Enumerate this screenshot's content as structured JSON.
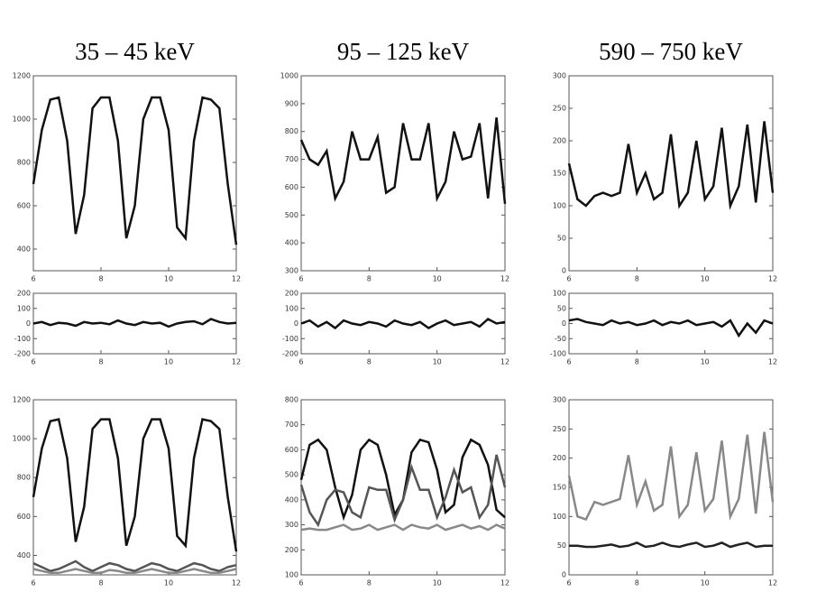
{
  "chart_data": [
    {
      "type": "line",
      "title": "35 – 45 keV",
      "x": [
        6,
        6.25,
        6.5,
        6.75,
        7,
        7.25,
        7.5,
        7.75,
        8,
        8.25,
        8.5,
        8.75,
        9,
        9.25,
        9.5,
        9.75,
        10,
        10.25,
        10.5,
        10.75,
        11,
        11.25,
        11.5,
        11.75,
        12
      ],
      "series": [
        {
          "color": "#111111",
          "values": [
            700,
            950,
            1090,
            1100,
            900,
            470,
            650,
            1050,
            1100,
            1100,
            900,
            450,
            600,
            1000,
            1100,
            1100,
            950,
            500,
            450,
            900,
            1100,
            1090,
            1050,
            700,
            420
          ]
        }
      ],
      "xlim": [
        6,
        12
      ],
      "xticks": [
        6,
        8,
        10,
        12
      ],
      "ylim": [
        300,
        1200
      ],
      "yticks": [
        400,
        600,
        800,
        1000,
        1200
      ]
    },
    {
      "type": "line",
      "title": "95 – 125 keV",
      "x": [
        6,
        6.25,
        6.5,
        6.75,
        7,
        7.25,
        7.5,
        7.75,
        8,
        8.25,
        8.5,
        8.75,
        9,
        9.25,
        9.5,
        9.75,
        10,
        10.25,
        10.5,
        10.75,
        11,
        11.25,
        11.5,
        11.75,
        12
      ],
      "series": [
        {
          "color": "#111111",
          "values": [
            770,
            700,
            680,
            730,
            560,
            620,
            800,
            700,
            700,
            780,
            580,
            600,
            830,
            700,
            700,
            830,
            560,
            620,
            800,
            700,
            710,
            830,
            560,
            850,
            540
          ]
        }
      ],
      "xlim": [
        6,
        12
      ],
      "xticks": [
        6,
        8,
        10,
        12
      ],
      "ylim": [
        300,
        1000
      ],
      "yticks": [
        300,
        400,
        500,
        600,
        700,
        800,
        900,
        1000
      ]
    },
    {
      "type": "line",
      "title": "590 – 750 keV",
      "x": [
        6,
        6.25,
        6.5,
        6.75,
        7,
        7.25,
        7.5,
        7.75,
        8,
        8.25,
        8.5,
        8.75,
        9,
        9.25,
        9.5,
        9.75,
        10,
        10.25,
        10.5,
        10.75,
        11,
        11.25,
        11.5,
        11.75,
        12
      ],
      "series": [
        {
          "color": "#111111",
          "values": [
            165,
            110,
            100,
            115,
            120,
            115,
            120,
            195,
            120,
            150,
            110,
            120,
            210,
            100,
            120,
            200,
            110,
            130,
            220,
            100,
            130,
            225,
            105,
            230,
            120
          ]
        }
      ],
      "xlim": [
        6,
        12
      ],
      "xticks": [
        6,
        8,
        10,
        12
      ],
      "ylim": [
        0,
        300
      ],
      "yticks": [
        0,
        50,
        100,
        150,
        200,
        250,
        300
      ]
    },
    {
      "type": "line",
      "x": [
        6,
        6.25,
        6.5,
        6.75,
        7,
        7.25,
        7.5,
        7.75,
        8,
        8.25,
        8.5,
        8.75,
        9,
        9.25,
        9.5,
        9.75,
        10,
        10.25,
        10.5,
        10.75,
        11,
        11.25,
        11.5,
        11.75,
        12
      ],
      "series": [
        {
          "color": "#111111",
          "values": [
            0,
            10,
            -10,
            5,
            0,
            -15,
            10,
            0,
            5,
            -5,
            20,
            0,
            -10,
            10,
            0,
            5,
            -20,
            0,
            10,
            15,
            -5,
            30,
            10,
            0,
            5
          ]
        }
      ],
      "xlim": [
        6,
        12
      ],
      "xticks": [
        6,
        8,
        10,
        12
      ],
      "ylim": [
        -200,
        200
      ],
      "yticks": [
        -200,
        -100,
        0,
        100,
        200
      ]
    },
    {
      "type": "line",
      "x": [
        6,
        6.25,
        6.5,
        6.75,
        7,
        7.25,
        7.5,
        7.75,
        8,
        8.25,
        8.5,
        8.75,
        9,
        9.25,
        9.5,
        9.75,
        10,
        10.25,
        10.5,
        10.75,
        11,
        11.25,
        11.5,
        11.75,
        12
      ],
      "series": [
        {
          "color": "#111111",
          "values": [
            0,
            20,
            -20,
            10,
            -30,
            20,
            0,
            -10,
            10,
            0,
            -20,
            20,
            0,
            -10,
            10,
            -30,
            0,
            20,
            -10,
            0,
            10,
            -20,
            30,
            0,
            10
          ]
        }
      ],
      "xlim": [
        6,
        12
      ],
      "xticks": [
        6,
        8,
        10,
        12
      ],
      "ylim": [
        -200,
        200
      ],
      "yticks": [
        -200,
        -100,
        0,
        100,
        200
      ]
    },
    {
      "type": "line",
      "x": [
        6,
        6.25,
        6.5,
        6.75,
        7,
        7.25,
        7.5,
        7.75,
        8,
        8.25,
        8.5,
        8.75,
        9,
        9.25,
        9.5,
        9.75,
        10,
        10.25,
        10.5,
        10.75,
        11,
        11.25,
        11.5,
        11.75,
        12
      ],
      "series": [
        {
          "color": "#111111",
          "values": [
            10,
            15,
            5,
            0,
            -5,
            10,
            0,
            5,
            -5,
            0,
            10,
            -5,
            5,
            0,
            10,
            -5,
            0,
            5,
            -10,
            10,
            -40,
            0,
            -30,
            10,
            0
          ]
        }
      ],
      "xlim": [
        6,
        12
      ],
      "xticks": [
        6,
        8,
        10,
        12
      ],
      "ylim": [
        -100,
        100
      ],
      "yticks": [
        -100,
        -50,
        0,
        50,
        100
      ]
    },
    {
      "type": "line",
      "x": [
        6,
        6.25,
        6.5,
        6.75,
        7,
        7.25,
        7.5,
        7.75,
        8,
        8.25,
        8.5,
        8.75,
        9,
        9.25,
        9.5,
        9.75,
        10,
        10.25,
        10.5,
        10.75,
        11,
        11.25,
        11.5,
        11.75,
        12
      ],
      "series": [
        {
          "color": "#111111",
          "values": [
            700,
            950,
            1090,
            1100,
            900,
            470,
            650,
            1050,
            1100,
            1100,
            900,
            450,
            600,
            1000,
            1100,
            1100,
            950,
            500,
            450,
            900,
            1100,
            1090,
            1050,
            700,
            420
          ]
        },
        {
          "color": "#555555",
          "values": [
            360,
            340,
            320,
            330,
            350,
            370,
            340,
            320,
            340,
            360,
            350,
            330,
            320,
            340,
            360,
            350,
            330,
            320,
            340,
            360,
            350,
            330,
            320,
            340,
            350
          ]
        },
        {
          "color": "#888888",
          "values": [
            330,
            320,
            310,
            310,
            320,
            330,
            320,
            310,
            310,
            325,
            320,
            310,
            310,
            320,
            330,
            320,
            310,
            310,
            320,
            330,
            320,
            310,
            310,
            320,
            330
          ]
        }
      ],
      "xlim": [
        6,
        12
      ],
      "xticks": [
        6,
        8,
        10,
        12
      ],
      "ylim": [
        300,
        1200
      ],
      "yticks": [
        400,
        600,
        800,
        1000,
        1200
      ]
    },
    {
      "type": "line",
      "x": [
        6,
        6.25,
        6.5,
        6.75,
        7,
        7.25,
        7.5,
        7.75,
        8,
        8.25,
        8.5,
        8.75,
        9,
        9.25,
        9.5,
        9.75,
        10,
        10.25,
        10.5,
        10.75,
        11,
        11.25,
        11.5,
        11.75,
        12
      ],
      "series": [
        {
          "color": "#111111",
          "values": [
            480,
            620,
            640,
            600,
            450,
            330,
            420,
            600,
            640,
            620,
            500,
            340,
            400,
            590,
            640,
            630,
            520,
            350,
            380,
            570,
            640,
            620,
            540,
            360,
            330
          ]
        },
        {
          "color": "#555555",
          "values": [
            460,
            350,
            300,
            400,
            440,
            430,
            350,
            330,
            450,
            440,
            440,
            320,
            400,
            530,
            440,
            440,
            330,
            410,
            520,
            430,
            450,
            330,
            380,
            580,
            450
          ]
        },
        {
          "color": "#888888",
          "values": [
            280,
            285,
            280,
            280,
            290,
            300,
            280,
            285,
            300,
            280,
            290,
            300,
            280,
            300,
            290,
            285,
            300,
            280,
            290,
            300,
            285,
            295,
            280,
            300,
            285
          ]
        }
      ],
      "xlim": [
        6,
        12
      ],
      "xticks": [
        6,
        8,
        10,
        12
      ],
      "ylim": [
        100,
        800
      ],
      "yticks": [
        100,
        200,
        300,
        400,
        500,
        600,
        700,
        800
      ]
    },
    {
      "type": "line",
      "x": [
        6,
        6.25,
        6.5,
        6.75,
        7,
        7.25,
        7.5,
        7.75,
        8,
        8.25,
        8.5,
        8.75,
        9,
        9.25,
        9.5,
        9.75,
        10,
        10.25,
        10.5,
        10.75,
        11,
        11.25,
        11.5,
        11.75,
        12
      ],
      "series": [
        {
          "color": "#888888",
          "values": [
            170,
            100,
            95,
            125,
            120,
            125,
            130,
            205,
            120,
            160,
            110,
            120,
            220,
            100,
            120,
            210,
            110,
            130,
            230,
            100,
            130,
            240,
            105,
            245,
            125
          ]
        },
        {
          "color": "#222222",
          "values": [
            50,
            50,
            48,
            48,
            50,
            52,
            48,
            50,
            55,
            48,
            50,
            55,
            50,
            48,
            52,
            55,
            48,
            50,
            55,
            48,
            52,
            55,
            48,
            50,
            50
          ]
        }
      ],
      "xlim": [
        6,
        12
      ],
      "xticks": [
        6,
        8,
        10,
        12
      ],
      "ylim": [
        0,
        300
      ],
      "yticks": [
        0,
        50,
        100,
        150,
        200,
        250,
        300
      ]
    }
  ]
}
